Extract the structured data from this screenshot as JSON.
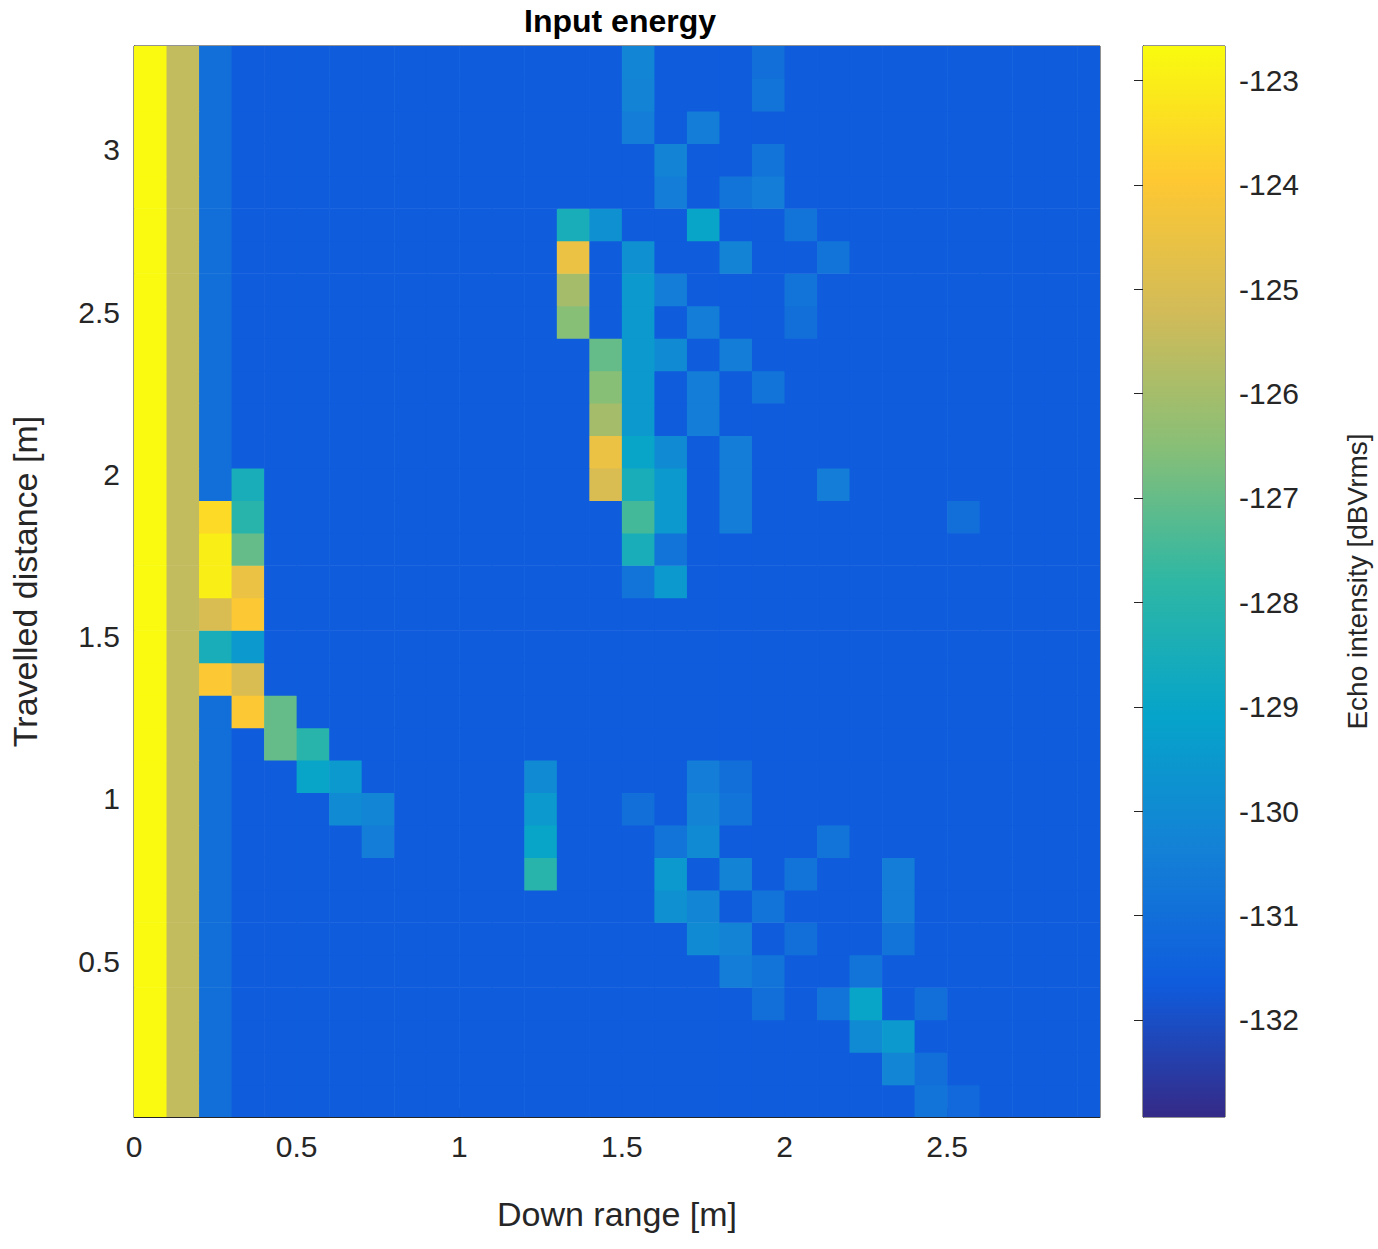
{
  "chart_data": {
    "type": "heatmap",
    "title": "Input energy",
    "x_label": "Down range [m]",
    "y_label": "Travelled distance [m]",
    "x": [
      0.05,
      0.15,
      0.25,
      0.35,
      0.45,
      0.55,
      0.65,
      0.75,
      0.85,
      0.95,
      1.05,
      1.15,
      1.25,
      1.35,
      1.45,
      1.55,
      1.65,
      1.75,
      1.85,
      1.95,
      2.05,
      2.15,
      2.25,
      2.35,
      2.45,
      2.55,
      2.65,
      2.75,
      2.85,
      2.95
    ],
    "y": [
      0.07,
      0.17,
      0.27,
      0.37,
      0.47,
      0.57,
      0.67,
      0.77,
      0.87,
      0.97,
      1.07,
      1.17,
      1.27,
      1.37,
      1.47,
      1.57,
      1.67,
      1.77,
      1.87,
      1.97,
      2.07,
      2.17,
      2.27,
      2.37,
      2.47,
      2.57,
      2.67,
      2.77,
      2.87,
      2.97,
      3.07,
      3.17,
      3.27
    ],
    "values": [
      [
        -122.7,
        -125.5,
        -131,
        -131.6,
        -131.6,
        -131.6,
        -131.6,
        -131.6,
        -131.6,
        -131.6,
        -131.6,
        -131.6,
        -131.6,
        -131.6,
        -131.6,
        -131.6,
        -131.6,
        -131.6,
        -131.6,
        -131.6,
        -131.6,
        -131.6,
        -131.6,
        -131.6,
        -130.8,
        -131.2,
        -131.6,
        -131.6,
        -131.6,
        -131.6
      ],
      [
        -122.7,
        -125.5,
        -131,
        -131.6,
        -131.6,
        -131.6,
        -131.6,
        -131.6,
        -131.6,
        -131.6,
        -131.6,
        -131.6,
        -131.6,
        -131.6,
        -131.6,
        -131.6,
        -131.6,
        -131.6,
        -131.6,
        -131.6,
        -131.6,
        -131.6,
        -131.6,
        -130.2,
        -131,
        -131.6,
        -131.6,
        -131.6,
        -131.6,
        -131.6
      ],
      [
        -122.7,
        -125.5,
        -131,
        -131.6,
        -131.6,
        -131.6,
        -131.6,
        -131.6,
        -131.6,
        -131.6,
        -131.6,
        -131.6,
        -131.6,
        -131.6,
        -131.6,
        -131.6,
        -131.6,
        -131.6,
        -131.6,
        -131.6,
        -131.6,
        -131.6,
        -130,
        -129.5,
        -131.6,
        -131.6,
        -131.6,
        -131.6,
        -131.6,
        -131.6
      ],
      [
        -122.7,
        -125.5,
        -131,
        -131.6,
        -131.6,
        -131.6,
        -131.6,
        -131.6,
        -131.6,
        -131.6,
        -131.6,
        -131.6,
        -131.6,
        -131.6,
        -131.6,
        -131.6,
        -131.6,
        -131.6,
        -131.6,
        -131,
        -131.6,
        -130.8,
        -129,
        -131.6,
        -131,
        -131.6,
        -131.6,
        -131.6,
        -131.6,
        -131.6
      ],
      [
        -122.7,
        -125.5,
        -131,
        -131.6,
        -131.6,
        -131.6,
        -131.6,
        -131.6,
        -131.6,
        -131.6,
        -131.6,
        -131.6,
        -131.6,
        -131.6,
        -131.6,
        -131.6,
        -131.6,
        -131.6,
        -130.5,
        -130.8,
        -131.6,
        -131.6,
        -130.8,
        -131.6,
        -131.6,
        -131.6,
        -131.6,
        -131.6,
        -131.6,
        -131.6
      ],
      [
        -122.7,
        -125.5,
        -131,
        -131.6,
        -131.6,
        -131.6,
        -131.6,
        -131.6,
        -131.6,
        -131.6,
        -131.6,
        -131.6,
        -131.6,
        -131.6,
        -131.6,
        -131.6,
        -131.6,
        -130,
        -130.3,
        -131.6,
        -131,
        -131.6,
        -131.6,
        -130.8,
        -131.6,
        -131.6,
        -131.6,
        -131.6,
        -131.6,
        -131.6
      ],
      [
        -122.7,
        -125.5,
        -131,
        -131.6,
        -131.6,
        -131.6,
        -131.6,
        -131.6,
        -131.6,
        -131.6,
        -131.6,
        -131.6,
        -131.6,
        -131.6,
        -131.6,
        -131.6,
        -129.8,
        -130.2,
        -131.6,
        -130.8,
        -131.6,
        -131.6,
        -131.6,
        -130.5,
        -131.6,
        -131.6,
        -131.6,
        -131.6,
        -131.6,
        -131.6
      ],
      [
        -122.7,
        -125.5,
        -131,
        -131.6,
        -131.6,
        -131.6,
        -131.6,
        -131.6,
        -131.6,
        -131.6,
        -131.6,
        -131.6,
        -128,
        -131.6,
        -131.6,
        -131.6,
        -129.5,
        -131.6,
        -130.3,
        -131.6,
        -130.8,
        -131.6,
        -131.6,
        -130.5,
        -131.6,
        -131.6,
        -131.6,
        -131.6,
        -131.6,
        -131.6
      ],
      [
        -122.7,
        -125.5,
        -131,
        -131.6,
        -131.6,
        -131.6,
        -131.6,
        -130.5,
        -131.6,
        -131.6,
        -131.6,
        -131.6,
        -129,
        -131.6,
        -131.6,
        -131.6,
        -130.8,
        -130,
        -131.6,
        -131.6,
        -131.6,
        -130.8,
        -131.6,
        -131.6,
        -131.6,
        -131.6,
        -131.6,
        -131.6,
        -131.6,
        -131.6
      ],
      [
        -122.7,
        -125.5,
        -131,
        -131.6,
        -131.6,
        -131.6,
        -130,
        -130.2,
        -131.6,
        -131.6,
        -131.6,
        -131.6,
        -129.5,
        -131.6,
        -131.6,
        -131,
        -131.6,
        -130.3,
        -130.8,
        -131.6,
        -131.6,
        -131.6,
        -131.6,
        -131.6,
        -131.6,
        -131.6,
        -131.6,
        -131.6,
        -131.6,
        -131.6
      ],
      [
        -122.7,
        -125.5,
        -131,
        -131.6,
        -131.6,
        -129,
        -129.5,
        -131.6,
        -131.6,
        -131.6,
        -131.6,
        -131.6,
        -130,
        -131.6,
        -131.6,
        -131.6,
        -131.6,
        -130.5,
        -131,
        -131.6,
        -131.6,
        -131.6,
        -131.6,
        -131.6,
        -131.6,
        -131.6,
        -131.6,
        -131.6,
        -131.6,
        -131.6
      ],
      [
        -122.7,
        -125.5,
        -131,
        -131.6,
        -127,
        -128,
        -131.6,
        -131.6,
        -131.6,
        -131.6,
        -131.6,
        -131.6,
        -131.6,
        -131.6,
        -131.6,
        -131.6,
        -131.6,
        -131.6,
        -131.6,
        -131.6,
        -131.6,
        -131.6,
        -131.6,
        -131.6,
        -131.6,
        -131.6,
        -131.6,
        -131.6,
        -131.6,
        -131.6
      ],
      [
        -122.7,
        -125.5,
        -131,
        -124,
        -127,
        -131.6,
        -131.6,
        -131.6,
        -131.6,
        -131.6,
        -131.6,
        -131.6,
        -131.6,
        -131.6,
        -131.6,
        -131.6,
        -131.6,
        -131.6,
        -131.6,
        -131.6,
        -131.6,
        -131.6,
        -131.6,
        -131.6,
        -131.6,
        -131.6,
        -131.6,
        -131.6,
        -131.6,
        -131.6
      ],
      [
        -122.7,
        -125.5,
        -124,
        -125,
        -131.6,
        -131.6,
        -131.6,
        -131.6,
        -131.6,
        -131.6,
        -131.6,
        -131.6,
        -131.6,
        -131.6,
        -131.6,
        -131.6,
        -131.6,
        -131.6,
        -131.6,
        -131.6,
        -131.6,
        -131.6,
        -131.6,
        -131.6,
        -131.6,
        -131.6,
        -131.6,
        -131.6,
        -131.6,
        -131.6
      ],
      [
        -122.7,
        -125.5,
        -128.5,
        -129.5,
        -131.6,
        -131.6,
        -131.6,
        -131.6,
        -131.6,
        -131.6,
        -131.6,
        -131.6,
        -131.6,
        -131.6,
        -131.6,
        -131.6,
        -131.6,
        -131.6,
        -131.6,
        -131.6,
        -131.6,
        -131.6,
        -131.6,
        -131.6,
        -131.6,
        -131.6,
        -131.6,
        -131.6,
        -131.6,
        -131.6
      ],
      [
        -122.7,
        -125.5,
        -125,
        -124,
        -131.6,
        -131.6,
        -131.6,
        -131.6,
        -131.6,
        -131.6,
        -131.6,
        -131.6,
        -131.6,
        -131.6,
        -131.6,
        -131.6,
        -131.6,
        -131.6,
        -131.6,
        -131.6,
        -131.6,
        -131.6,
        -131.6,
        -131.6,
        -131.6,
        -131.6,
        -131.6,
        -131.6,
        -131.6,
        -131.6
      ],
      [
        -122.7,
        -125.5,
        -123,
        -124.5,
        -131.6,
        -131.6,
        -131.6,
        -131.6,
        -131.6,
        -131.6,
        -131.6,
        -131.6,
        -131.6,
        -131.6,
        -131.6,
        -130.8,
        -129.5,
        -131.6,
        -131.6,
        -131.6,
        -131.6,
        -131.6,
        -131.6,
        -131.6,
        -131.6,
        -131.6,
        -131.6,
        -131.6,
        -131.6,
        -131.6
      ],
      [
        -122.7,
        -125.5,
        -123,
        -127,
        -131.6,
        -131.6,
        -131.6,
        -131.6,
        -131.6,
        -131.6,
        -131.6,
        -131.6,
        -131.6,
        -131.6,
        -131.6,
        -128.5,
        -130.8,
        -131.6,
        -131.6,
        -131.6,
        -131.6,
        -131.6,
        -131.6,
        -131.6,
        -131.6,
        -131.6,
        -131.6,
        -131.6,
        -131.6,
        -131.6
      ],
      [
        -122.7,
        -125.5,
        -123.5,
        -128,
        -131.6,
        -131.6,
        -131.6,
        -131.6,
        -131.6,
        -131.6,
        -131.6,
        -131.6,
        -131.6,
        -131.6,
        -131.6,
        -127.5,
        -129.5,
        -131.6,
        -130.5,
        -131.6,
        -131.6,
        -131.6,
        -131.6,
        -131.6,
        -131.6,
        -131,
        -131.6,
        -131.6,
        -131.6,
        -131.6
      ],
      [
        -122.7,
        -125.5,
        -131,
        -128.5,
        -131.6,
        -131.6,
        -131.6,
        -131.6,
        -131.6,
        -131.6,
        -131.6,
        -131.6,
        -131.6,
        -131.6,
        -125,
        -128.5,
        -129.5,
        -131.6,
        -130.5,
        -131.6,
        -131.6,
        -130.5,
        -131.6,
        -131.6,
        -131.6,
        -131.6,
        -131.6,
        -131.6,
        -131.6,
        -131.6
      ],
      [
        -122.7,
        -125.5,
        -131,
        -131.6,
        -131.6,
        -131.6,
        -131.6,
        -131.6,
        -131.6,
        -131.6,
        -131.6,
        -131.6,
        -131.6,
        -131.6,
        -124.5,
        -129,
        -130,
        -131.6,
        -130.5,
        -131.6,
        -131.6,
        -131.6,
        -131.6,
        -131.6,
        -131.6,
        -131.6,
        -131.6,
        -131.6,
        -131.6,
        -131.6
      ],
      [
        -122.7,
        -125.5,
        -131,
        -131.6,
        -131.6,
        -131.6,
        -131.6,
        -131.6,
        -131.6,
        -131.6,
        -131.6,
        -131.6,
        -131.6,
        -131.6,
        -126,
        -129.5,
        -131.6,
        -130.5,
        -131.6,
        -131.6,
        -131.6,
        -131.6,
        -131.6,
        -131.6,
        -131.6,
        -131.6,
        -131.6,
        -131.6,
        -131.6,
        -131.6
      ],
      [
        -122.7,
        -125.5,
        -131,
        -131.6,
        -131.6,
        -131.6,
        -131.6,
        -131.6,
        -131.6,
        -131.6,
        -131.6,
        -131.6,
        -131.6,
        -131.6,
        -126.5,
        -129.5,
        -131.6,
        -130.5,
        -131.6,
        -130.8,
        -131.6,
        -131.6,
        -131.6,
        -131.6,
        -131.6,
        -131.6,
        -131.6,
        -131.6,
        -131.6,
        -131.6
      ],
      [
        -122.7,
        -125.5,
        -131,
        -131.6,
        -131.6,
        -131.6,
        -131.6,
        -131.6,
        -131.6,
        -131.6,
        -131.6,
        -131.6,
        -131.6,
        -131.6,
        -127,
        -129.5,
        -130,
        -131.6,
        -130.5,
        -131.6,
        -131.6,
        -131.6,
        -131.6,
        -131.6,
        -131.6,
        -131.6,
        -131.6,
        -131.6,
        -131.6,
        -131.6
      ],
      [
        -122.7,
        -125.5,
        -131,
        -131.6,
        -131.6,
        -131.6,
        -131.6,
        -131.6,
        -131.6,
        -131.6,
        -131.6,
        -131.6,
        -131.6,
        -126.5,
        -131.6,
        -129.5,
        -131.6,
        -130.5,
        -131.6,
        -131.6,
        -131,
        -131.6,
        -131.6,
        -131.6,
        -131.6,
        -131.6,
        -131.6,
        -131.6,
        -131.6,
        -131.6
      ],
      [
        -122.7,
        -125.5,
        -131,
        -131.6,
        -131.6,
        -131.6,
        -131.6,
        -131.6,
        -131.6,
        -131.6,
        -131.6,
        -131.6,
        -131.6,
        -126,
        -131.6,
        -129.5,
        -130.5,
        -131.6,
        -131.6,
        -131.6,
        -130.8,
        -131.6,
        -131.6,
        -131.6,
        -131.6,
        -131.6,
        -131.6,
        -131.6,
        -131.6,
        -131.6
      ],
      [
        -122.7,
        -125.5,
        -131,
        -131.6,
        -131.6,
        -131.6,
        -131.6,
        -131.6,
        -131.6,
        -131.6,
        -131.6,
        -131.6,
        -131.6,
        -124.5,
        -131.6,
        -129.8,
        -131.6,
        -131.6,
        -130.3,
        -131.6,
        -131.6,
        -130.8,
        -131.6,
        -131.6,
        -131.6,
        -131.6,
        -131.6,
        -131.6,
        -131.6,
        -131.6
      ],
      [
        -122.7,
        -125.5,
        -131,
        -131.6,
        -131.6,
        -131.6,
        -131.6,
        -131.6,
        -131.6,
        -131.6,
        -131.6,
        -131.6,
        -131.6,
        -128.5,
        -129.8,
        -131.6,
        -131.6,
        -129,
        -131.6,
        -131.6,
        -130.8,
        -131.6,
        -131.6,
        -131.6,
        -131.6,
        -131.6,
        -131.6,
        -131.6,
        -131.6,
        -131.6
      ],
      [
        -122.7,
        -125.5,
        -131,
        -131.6,
        -131.6,
        -131.6,
        -131.6,
        -131.6,
        -131.6,
        -131.6,
        -131.6,
        -131.6,
        -131.6,
        -131.6,
        -131.6,
        -131.6,
        -130.5,
        -131.6,
        -130.8,
        -130.5,
        -131.6,
        -131.6,
        -131.6,
        -131.6,
        -131.6,
        -131.6,
        -131.6,
        -131.6,
        -131.6,
        -131.6
      ],
      [
        -122.7,
        -125.5,
        -131,
        -131.6,
        -131.6,
        -131.6,
        -131.6,
        -131.6,
        -131.6,
        -131.6,
        -131.6,
        -131.6,
        -131.6,
        -131.6,
        -131.6,
        -131.6,
        -130.3,
        -131.6,
        -131.6,
        -130.8,
        -131.6,
        -131.6,
        -131.6,
        -131.6,
        -131.6,
        -131.6,
        -131.6,
        -131.6,
        -131.6,
        -131.6
      ],
      [
        -122.7,
        -125.5,
        -131,
        -131.6,
        -131.6,
        -131.6,
        -131.6,
        -131.6,
        -131.6,
        -131.6,
        -131.6,
        -131.6,
        -131.6,
        -131.6,
        -131.6,
        -130.5,
        -131.6,
        -130.5,
        -131.6,
        -131.6,
        -131.6,
        -131.6,
        -131.6,
        -131.6,
        -131.6,
        -131.6,
        -131.6,
        -131.6,
        -131.6,
        -131.6
      ],
      [
        -122.7,
        -125.5,
        -131,
        -131.6,
        -131.6,
        -131.6,
        -131.6,
        -131.6,
        -131.6,
        -131.6,
        -131.6,
        -131.6,
        -131.6,
        -131.6,
        -131.6,
        -130.3,
        -131.6,
        -131.6,
        -131.6,
        -130.8,
        -131.6,
        -131.6,
        -131.6,
        -131.6,
        -131.6,
        -131.6,
        -131.6,
        -131.6,
        -131.6,
        -131.6
      ],
      [
        -122.7,
        -125.5,
        -131,
        -131.6,
        -131.6,
        -131.6,
        -131.6,
        -131.6,
        -131.6,
        -131.6,
        -131.6,
        -131.6,
        -131.6,
        -131.6,
        -131.6,
        -130.2,
        -131.6,
        -131.6,
        -131.6,
        -131,
        -131.6,
        -131.6,
        -131.6,
        -131.6,
        -131.6,
        -131.6,
        -131.6,
        -131.6,
        -131.6,
        -131.6
      ]
    ],
    "xlim": [
      0,
      2.97
    ],
    "ylim": [
      0.02,
      3.32
    ],
    "xticks": [
      0,
      0.5,
      1,
      1.5,
      2,
      2.5
    ],
    "yticks": [
      0.5,
      1,
      1.5,
      2,
      2.5,
      3
    ],
    "colorbar_label": "Echo intensity [dBVrms]",
    "clim": [
      -132.93,
      -122.67
    ],
    "cticks": [
      -132,
      -131,
      -130,
      -129,
      -128,
      -127,
      -126,
      -125,
      -124,
      -123
    ],
    "grid": false
  }
}
